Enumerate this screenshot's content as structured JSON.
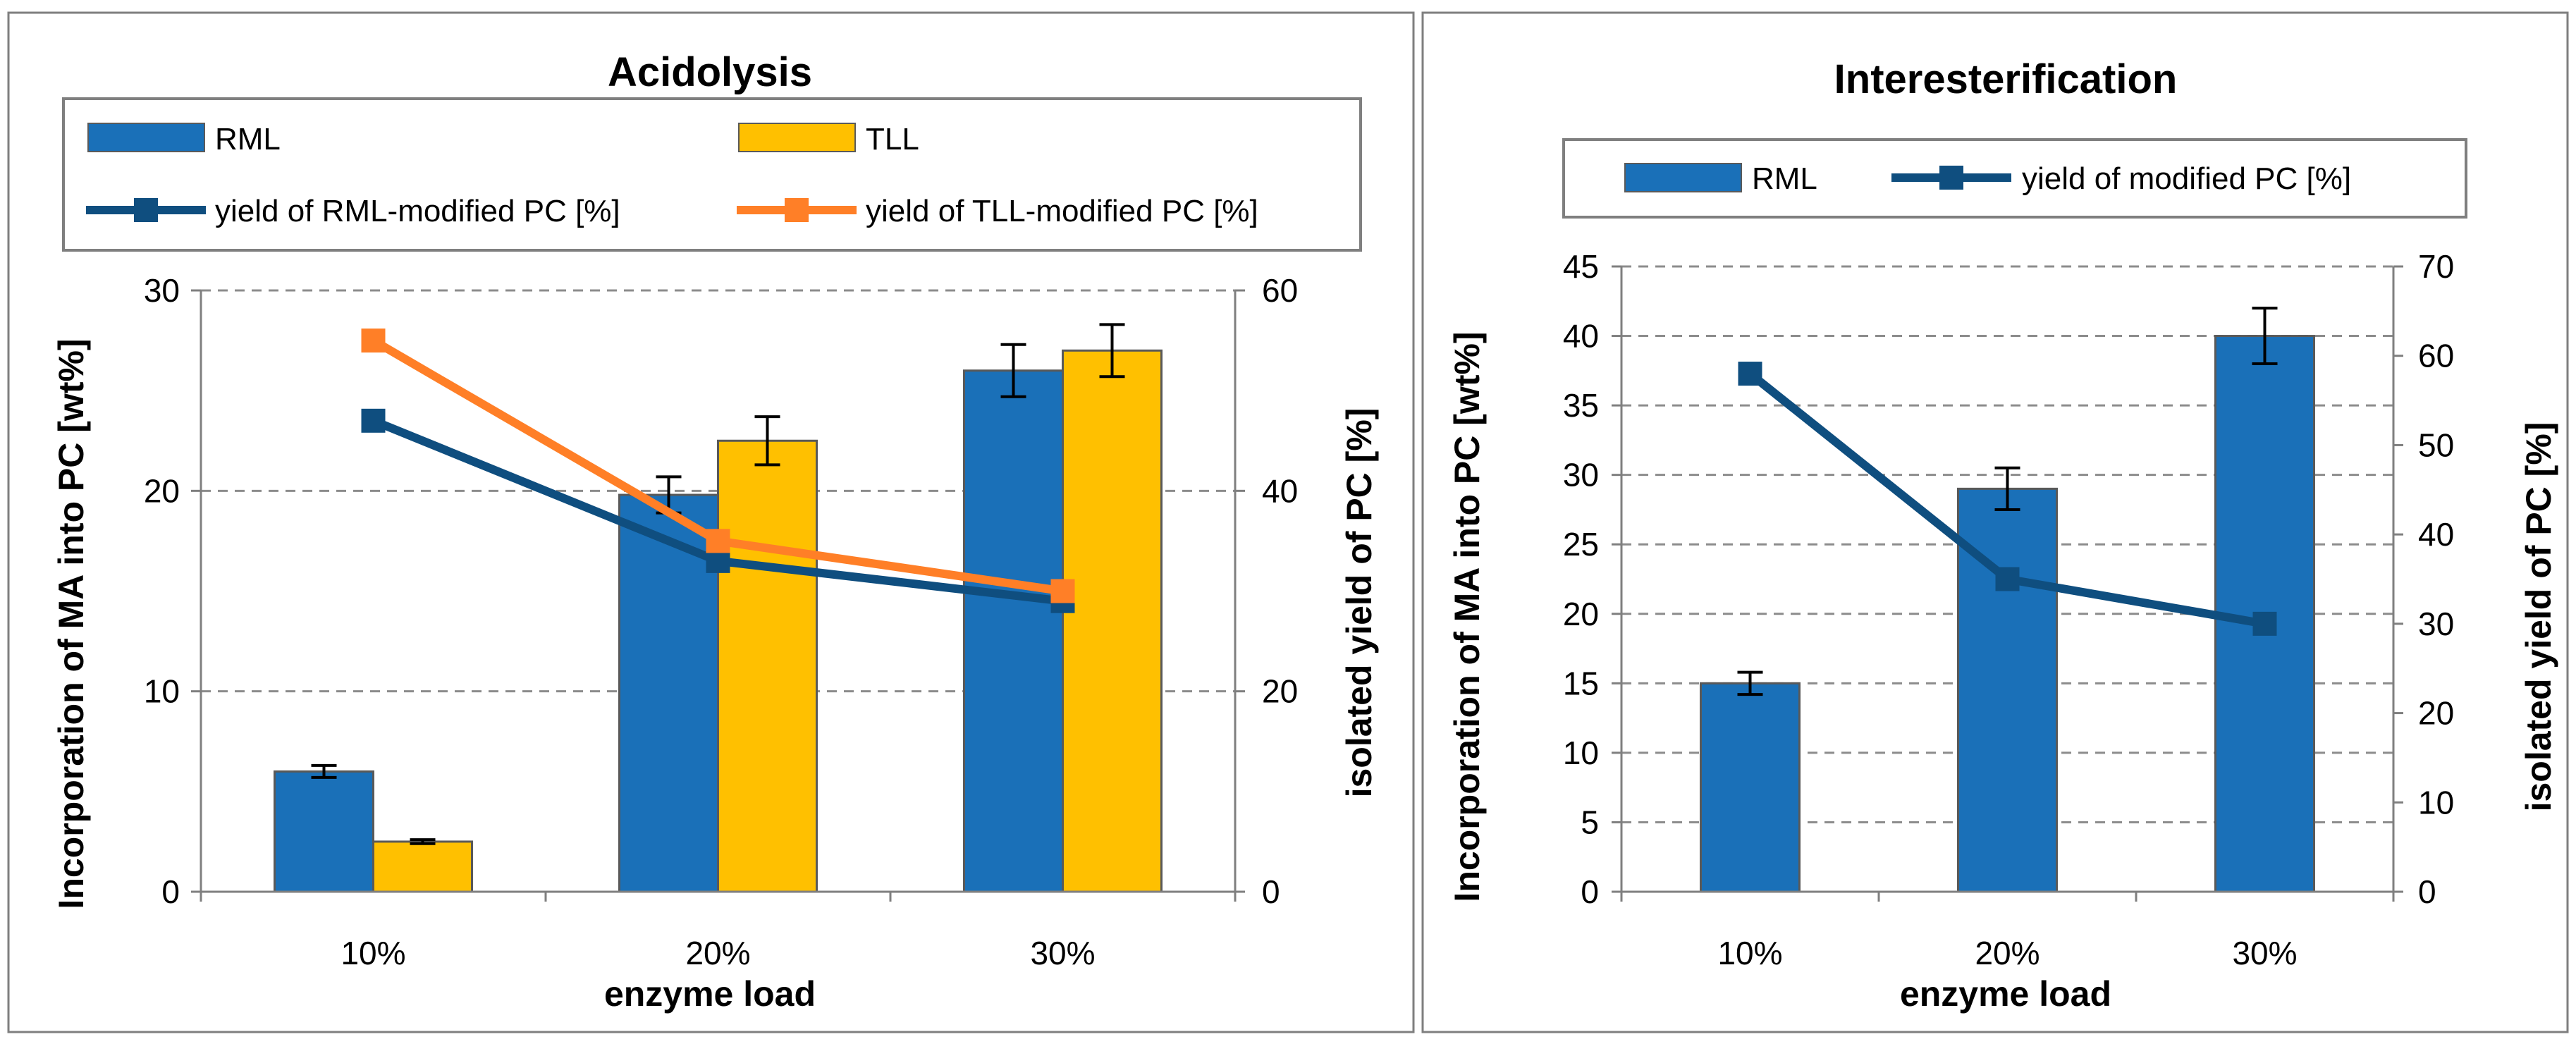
{
  "colors": {
    "rml_bar": "#1a70b8",
    "tll_bar": "#ffc000",
    "rml_line": "#0f4e7f",
    "tll_line": "#ff7f27",
    "grid": "#8c8c8c",
    "axis": "#7f7f7f",
    "frame": "#7f7f7f",
    "error": "#000000"
  },
  "chart_data": [
    {
      "type": "bar",
      "title": "Acidolysis",
      "categories": [
        "10%",
        "20%",
        "30%"
      ],
      "xlabel": "enzyme load",
      "ylabel": "Incorporation of MA into PC [wt%]",
      "y2label": "isolated yield of PC [%]",
      "ylim": [
        0,
        30
      ],
      "yticks": [
        "0",
        "10",
        "20",
        "30"
      ],
      "y2lim": [
        0,
        60
      ],
      "y2ticks": [
        "0",
        "20",
        "40",
        "60"
      ],
      "grid": true,
      "legend_position": "top",
      "series": [
        {
          "name": "RML",
          "kind": "bar",
          "axis": "left",
          "color_key": "rml_bar",
          "values": [
            6.0,
            19.8,
            26.0
          ],
          "errors": [
            0.3,
            0.9,
            1.3
          ]
        },
        {
          "name": "TLL",
          "kind": "bar",
          "axis": "left",
          "color_key": "tll_bar",
          "values": [
            2.5,
            22.5,
            27.0
          ],
          "errors": [
            0.1,
            1.2,
            1.3
          ]
        },
        {
          "name": "yield of RML-modified PC [%]",
          "kind": "line",
          "axis": "right",
          "color_key": "rml_line",
          "values": [
            47.0,
            33.0,
            29.0
          ]
        },
        {
          "name": "yield of TLL-modified PC [%]",
          "kind": "line",
          "axis": "right",
          "color_key": "tll_line",
          "values": [
            55.0,
            35.0,
            30.0
          ]
        }
      ]
    },
    {
      "type": "bar",
      "title": "Interesterification",
      "categories": [
        "10%",
        "20%",
        "30%"
      ],
      "xlabel": "enzyme load",
      "ylabel": "Incorporation of MA into PC [wt%]",
      "y2label": "isolated yield of PC [%]",
      "ylim": [
        0,
        45
      ],
      "yticks": [
        "0",
        "5",
        "10",
        "15",
        "20",
        "25",
        "30",
        "35",
        "40",
        "45"
      ],
      "y2lim": [
        0,
        70
      ],
      "y2ticks": [
        "0",
        "10",
        "20",
        "30",
        "40",
        "50",
        "60",
        "70"
      ],
      "grid": true,
      "legend_position": "top",
      "series": [
        {
          "name": "RML",
          "kind": "bar",
          "axis": "left",
          "color_key": "rml_bar",
          "values": [
            15.0,
            29.0,
            40.0
          ],
          "errors": [
            0.8,
            1.5,
            2.0
          ]
        },
        {
          "name": "yield of modified PC [%]",
          "kind": "line",
          "axis": "right",
          "color_key": "rml_line",
          "values": [
            58.0,
            35.0,
            30.0
          ]
        }
      ]
    }
  ]
}
